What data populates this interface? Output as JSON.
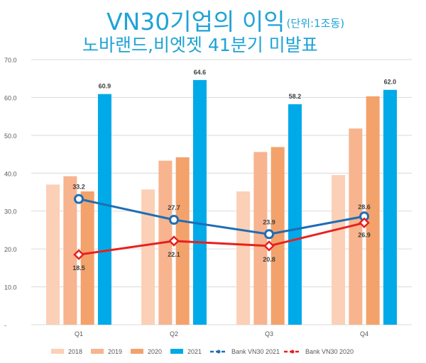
{
  "header": {
    "title": "VN30기업의 이익",
    "unit": "(단위:1조동)",
    "subtitle": "노바랜드,비엣젯 41분기 미발표"
  },
  "colors": {
    "s2018": "#fbd0b6",
    "s2019": "#f7b48e",
    "s2020": "#f3a26c",
    "s2021": "#00a9e8",
    "line2021": "#1f6db5",
    "line2020": "#e8201d",
    "grid": "#d9d9d9",
    "tick": "#595959"
  },
  "chart_data": {
    "type": "bar",
    "categories": [
      "Q1",
      "Q2",
      "Q3",
      "Q4"
    ],
    "ylim": [
      0,
      70
    ],
    "yticks": [
      "-",
      "10.0",
      "20.0",
      "30.0",
      "40.0",
      "50.0",
      "60.0",
      "70.0"
    ],
    "grid": true,
    "legend_position": "bottom",
    "series": [
      {
        "name": "2018",
        "kind": "bar",
        "values": [
          37.0,
          35.7,
          35.2,
          39.5
        ]
      },
      {
        "name": "2019",
        "kind": "bar",
        "values": [
          39.2,
          43.3,
          45.6,
          51.8
        ]
      },
      {
        "name": "2020",
        "kind": "bar",
        "values": [
          35.2,
          44.2,
          46.9,
          60.3
        ]
      },
      {
        "name": "2021",
        "kind": "bar",
        "values": [
          60.9,
          64.6,
          58.2,
          62.0
        ],
        "labels": [
          "60.9",
          "64.6",
          "58.2",
          "62.0"
        ]
      },
      {
        "name": "Bank VN30 2021",
        "kind": "line",
        "values": [
          33.2,
          27.7,
          23.9,
          28.6
        ],
        "labels": [
          "33.2",
          "27.7",
          "23.9",
          "28.6"
        ]
      },
      {
        "name": "Bank VN30 2020",
        "kind": "line",
        "values": [
          18.5,
          22.1,
          20.8,
          26.9
        ],
        "labels": [
          "18.5",
          "22.1",
          "20.8",
          "26.9"
        ]
      }
    ]
  }
}
